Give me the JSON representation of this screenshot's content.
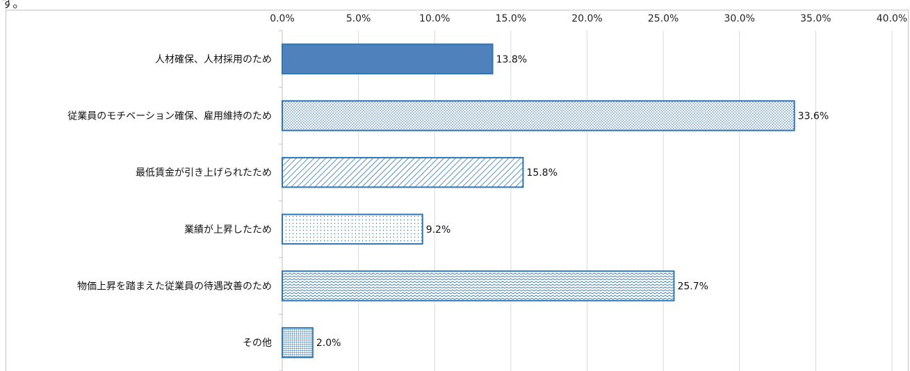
{
  "header_fragment": "す。",
  "chart_data": {
    "type": "bar",
    "orientation": "horizontal",
    "categories": [
      "人材確保、人材採用のため",
      "従業員のモチベーション確保、雇用維持のため",
      "最低賃金が引き上げられたため",
      "業績が上昇したため",
      "物価上昇を踏まえた従業員の待遇改善のため",
      "その他"
    ],
    "values": [
      13.8,
      33.6,
      15.8,
      9.2,
      25.7,
      2.0
    ],
    "value_labels": [
      "13.8%",
      "33.6%",
      "15.8%",
      "9.2%",
      "25.7%",
      "2.0%"
    ],
    "tick_labels": [
      "0.0%",
      "5.0%",
      "10.0%",
      "15.0%",
      "20.0%",
      "25.0%",
      "30.0%",
      "35.0%",
      "40.0%"
    ],
    "xlim": [
      0,
      40
    ],
    "axis_position": "top",
    "grid": true,
    "legend": "none",
    "title": "",
    "xlabel": "",
    "ylabel": "",
    "fill_patterns": [
      "solid",
      "fine-dots",
      "diagonal-hatch",
      "sparse-dots",
      "zigzag",
      "grid"
    ],
    "colors": {
      "bar_stroke": "#2e75b6",
      "bar_solid": "#4f81bd",
      "pattern": "#2e75b6",
      "gridline": "#d9d9d9",
      "axis": "#bfbfbf"
    }
  }
}
